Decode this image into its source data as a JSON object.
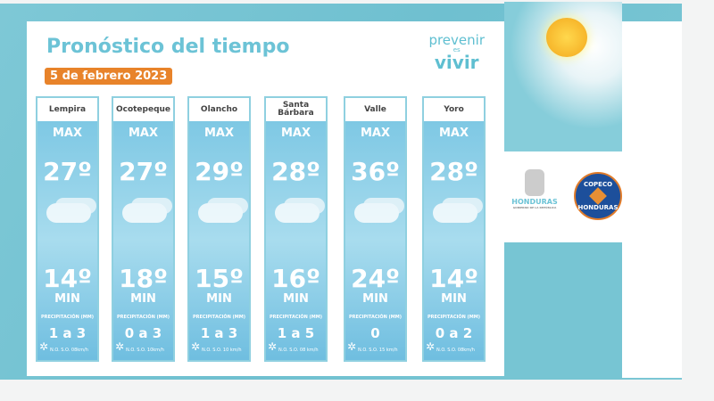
{
  "header": {
    "title": "Pronóstico del tiempo",
    "date": "5 de febrero 2023"
  },
  "logo": {
    "line1": "prevenir",
    "line2": "es",
    "line3": "vivir"
  },
  "labels": {
    "max": "MAX",
    "min": "MIN",
    "precip": "PRECIPITACIÓN (MM)"
  },
  "regions": [
    {
      "name": "Lempira",
      "max": "27º",
      "min": "14º",
      "precip": "1 a 3",
      "wind": "N.O. S.O. 08km/h"
    },
    {
      "name": "Ocotepeque",
      "max": "27º",
      "min": "18º",
      "precip": "0 a 3",
      "wind": "N.O. S.O. 10km/h"
    },
    {
      "name": "Olancho",
      "max": "29º",
      "min": "15º",
      "precip": "1 a 3",
      "wind": "N.O. S.O. 10 km/h"
    },
    {
      "name": "Santa Bárbara",
      "max": "28º",
      "min": "16º",
      "precip": "1 a 5",
      "wind": "N.O. S.O. 08 km/h"
    },
    {
      "name": "Valle",
      "max": "36º",
      "min": "24º",
      "precip": "0",
      "wind": "N.O. S.O. 15 km/h"
    },
    {
      "name": "Yoro",
      "max": "28º",
      "min": "14º",
      "precip": "0 a 2",
      "wind": "N.O. S.O. 08km/h"
    }
  ],
  "sponsors": {
    "honduras": "HONDURAS",
    "honduras_sub": "GOBIERNO DE LA REPÚBLICA",
    "copeco_top": "COPECO",
    "copeco_bottom": "HONDURAS"
  },
  "colors": {
    "accent": "#6cc3d6",
    "date_badge": "#e8832a"
  }
}
